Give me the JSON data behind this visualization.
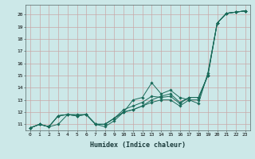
{
  "xlabel": "Humidex (Indice chaleur)",
  "background_color": "#cce8e8",
  "grid_color": "#c8a8a8",
  "line_color": "#1a6b5a",
  "xlim": [
    -0.5,
    23.5
  ],
  "ylim": [
    10.5,
    20.8
  ],
  "xticks": [
    0,
    1,
    2,
    3,
    4,
    5,
    6,
    7,
    8,
    9,
    10,
    11,
    12,
    13,
    14,
    15,
    16,
    17,
    18,
    19,
    20,
    21,
    22,
    23
  ],
  "yticks": [
    11,
    12,
    13,
    14,
    15,
    16,
    17,
    18,
    19,
    20
  ],
  "series": [
    [
      10.7,
      11.0,
      10.8,
      11.0,
      11.8,
      11.8,
      11.8,
      11.0,
      10.8,
      11.3,
      12.0,
      13.0,
      13.2,
      14.4,
      13.5,
      13.8,
      13.2,
      13.0,
      12.7,
      15.2,
      19.3,
      20.1,
      20.2,
      20.3
    ],
    [
      10.7,
      11.0,
      10.8,
      11.7,
      11.8,
      11.7,
      11.8,
      11.0,
      11.0,
      11.5,
      12.2,
      12.5,
      12.8,
      13.3,
      13.2,
      13.3,
      12.7,
      13.2,
      13.2,
      15.0,
      19.3,
      20.1,
      20.2,
      20.3
    ],
    [
      10.7,
      11.0,
      10.8,
      11.7,
      11.8,
      11.7,
      11.8,
      11.0,
      11.0,
      11.5,
      12.0,
      12.2,
      12.5,
      13.0,
      13.3,
      13.5,
      12.8,
      13.2,
      13.2,
      15.0,
      19.3,
      20.1,
      20.2,
      20.3
    ],
    [
      10.7,
      11.0,
      10.8,
      11.7,
      11.8,
      11.7,
      11.8,
      11.0,
      11.0,
      11.5,
      12.0,
      12.2,
      12.5,
      12.8,
      13.0,
      13.0,
      12.5,
      13.0,
      13.0,
      15.0,
      19.3,
      20.1,
      20.2,
      20.3
    ]
  ],
  "x_vals": [
    0,
    1,
    2,
    3,
    4,
    5,
    6,
    7,
    8,
    9,
    10,
    11,
    12,
    13,
    14,
    15,
    16,
    17,
    18,
    19,
    20,
    21,
    22,
    23
  ],
  "figsize": [
    3.2,
    2.0
  ],
  "dpi": 100
}
